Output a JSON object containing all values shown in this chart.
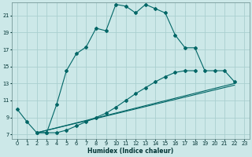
{
  "xlabel": "Humidex (Indice chaleur)",
  "bg_color": "#cce8e8",
  "grid_color": "#aacfcf",
  "line_color": "#006666",
  "xlim": [
    -0.5,
    23.5
  ],
  "ylim": [
    6.5,
    22.5
  ],
  "xticks": [
    0,
    1,
    2,
    3,
    4,
    5,
    6,
    7,
    8,
    9,
    10,
    11,
    12,
    13,
    14,
    15,
    16,
    17,
    18,
    19,
    20,
    21,
    22,
    23
  ],
  "yticks": [
    7,
    9,
    11,
    13,
    15,
    17,
    19,
    21
  ],
  "series": [
    {
      "x": [
        0,
        1,
        2,
        3,
        4,
        5,
        6,
        7,
        8,
        9,
        10,
        11,
        12,
        13,
        14,
        15,
        16,
        17,
        18
      ],
      "y": [
        10,
        8.5,
        7.2,
        7.2,
        10.5,
        14.5,
        16.5,
        17.3,
        19.5,
        19.2,
        22.3,
        22.1,
        21.3,
        22.3,
        21.8,
        21.3,
        18.7,
        17.2,
        17.2
      ]
    },
    {
      "x": [
        19,
        20,
        21,
        22
      ],
      "y": [
        14.5,
        14.5,
        14.5,
        13.2
      ]
    },
    {
      "x": [
        2,
        3,
        4,
        5,
        6,
        7,
        8,
        9,
        10,
        11,
        12,
        13,
        14,
        15,
        16,
        17,
        18,
        19,
        20,
        21,
        22
      ],
      "y": [
        7.2,
        7.2,
        7.2,
        7.5,
        8.0,
        8.5,
        9.0,
        9.5,
        10.2,
        11.0,
        11.8,
        12.5,
        13.2,
        13.8,
        14.3,
        14.5,
        14.5,
        null,
        null,
        null,
        null
      ]
    },
    {
      "x": [
        2,
        22
      ],
      "y": [
        7.2,
        12.8
      ]
    },
    {
      "x": [
        2,
        22
      ],
      "y": [
        7.2,
        13.0
      ]
    }
  ]
}
